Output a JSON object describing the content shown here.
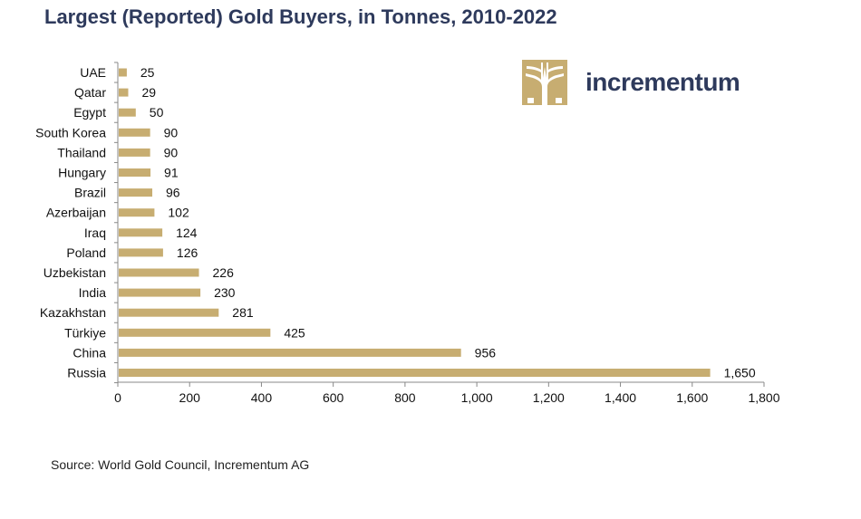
{
  "chart_data": {
    "type": "bar",
    "orientation": "horizontal",
    "title": "Largest (Reported) Gold Buyers, in Tonnes, 2010-2022",
    "categories": [
      "UAE",
      "Qatar",
      "Egypt",
      "South Korea",
      "Thailand",
      "Hungary",
      "Brazil",
      "Azerbaijan",
      "Iraq",
      "Poland",
      "Uzbekistan",
      "India",
      "Kazakhstan",
      "Türkiye",
      "China",
      "Russia"
    ],
    "values": [
      25,
      29,
      50,
      90,
      90,
      91,
      96,
      102,
      124,
      126,
      226,
      230,
      281,
      425,
      956,
      1650
    ],
    "value_labels": [
      "25",
      "29",
      "50",
      "90",
      "90",
      "91",
      "96",
      "102",
      "124",
      "126",
      "226",
      "230",
      "281",
      "425",
      "956",
      "1,650"
    ],
    "xlim": [
      0,
      1800
    ],
    "xticks": [
      0,
      200,
      400,
      600,
      800,
      1000,
      1200,
      1400,
      1600,
      1800
    ],
    "xtick_labels": [
      "0",
      "200",
      "400",
      "600",
      "800",
      "1,000",
      "1,200",
      "1,400",
      "1,600",
      "1,800"
    ],
    "xlabel": "",
    "ylabel": "",
    "grid": false,
    "bar_color": "#c7ad71"
  },
  "logo": {
    "text": "incrementum",
    "icon": "tree-logo-icon",
    "color": "#2e3a5c",
    "mark_color": "#c7ad71"
  },
  "source": "Source: World Gold Council, Incrementum AG",
  "title_color": "#2e3a5c"
}
